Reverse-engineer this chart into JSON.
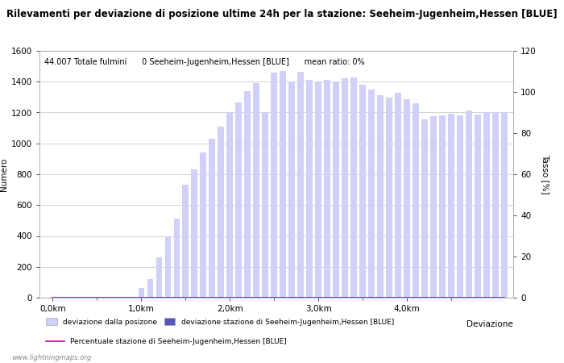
{
  "title": "Rilevamenti per deviazione di posizione ultime 24h per la stazione: Seeheim-Jugenheim,Hessen [BLUE]",
  "subtitle": "44.007 Totale fulmini      0 Seeheim-Jugenheim,Hessen [BLUE]      mean ratio: 0%",
  "ylabel_left": "Numero",
  "ylabel_right": "Tasso [%]",
  "xlabel": "Deviazione",
  "watermark": "www.lightningmaps.org",
  "ylim_left": [
    0,
    1600
  ],
  "ylim_right": [
    0,
    120
  ],
  "yticks_left": [
    0,
    200,
    400,
    600,
    800,
    1000,
    1200,
    1400,
    1600
  ],
  "yticks_right": [
    0,
    20,
    40,
    60,
    80,
    100,
    120
  ],
  "bar_color_light": "#d0d0f8",
  "bar_color_dark": "#5555bb",
  "line_color": "#cc00aa",
  "bar_values": [
    3,
    3,
    3,
    3,
    3,
    3,
    3,
    3,
    3,
    3,
    65,
    120,
    260,
    400,
    510,
    730,
    830,
    940,
    1030,
    1110,
    1200,
    1265,
    1340,
    1390,
    1200,
    1460,
    1470,
    1400,
    1465,
    1410,
    1400,
    1410,
    1400,
    1420,
    1430,
    1380,
    1350,
    1310,
    1295,
    1330,
    1285,
    1260,
    1155,
    1175,
    1180,
    1190,
    1180,
    1215,
    1185,
    1200,
    1205,
    1200
  ],
  "station_bar_values": [
    0,
    0,
    0,
    0,
    0,
    0,
    0,
    0,
    0,
    0,
    0,
    0,
    0,
    0,
    0,
    0,
    0,
    0,
    0,
    0,
    0,
    0,
    0,
    0,
    0,
    0,
    0,
    0,
    0,
    0,
    0,
    0,
    0,
    0,
    0,
    0,
    0,
    0,
    0,
    0,
    0,
    0,
    0,
    0,
    0,
    0,
    0,
    0,
    0,
    0,
    0,
    0
  ],
  "x_tick_labels": [
    "0,0km",
    "1,0km",
    "2,0km",
    "3,0km",
    "4,0km"
  ],
  "x_tick_positions_km": [
    0.0,
    1.0,
    2.0,
    3.0,
    4.0
  ],
  "x_end_label": "Deviazione",
  "legend_label_light": "deviazione dalla posizone",
  "legend_label_dark": "deviazione stazione di Seeheim-Jugenheim,Hessen [BLUE]",
  "legend_label_line": "Percentuale stazione di Seeheim-Jugenheim,Hessen [BLUE]",
  "background_color": "#ffffff",
  "grid_color": "#cccccc",
  "title_fontsize": 8.5,
  "label_fontsize": 7.5,
  "tick_fontsize": 7.5,
  "subtitle_fontsize": 7,
  "legend_fontsize": 6.5,
  "step_km": 0.1,
  "xlim": [
    -0.15,
    5.2
  ]
}
